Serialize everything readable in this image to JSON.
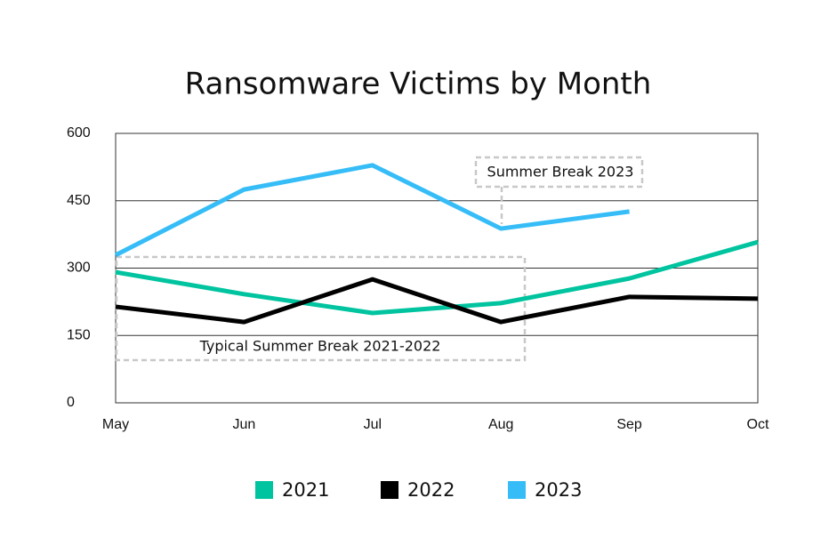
{
  "chart_data": {
    "type": "line",
    "title": "Ransomware Victims by Month",
    "categories": [
      "May",
      "Jun",
      "Jul",
      "Aug",
      "Sep",
      "Oct"
    ],
    "series": [
      {
        "name": "2021",
        "color": "#00c49f",
        "values": [
          291,
          242,
          200,
          222,
          277,
          358
        ]
      },
      {
        "name": "2022",
        "color": "#000000",
        "values": [
          214,
          180,
          275,
          180,
          236,
          232
        ]
      },
      {
        "name": "2023",
        "color": "#36bdf7",
        "values": [
          329,
          475,
          529,
          388,
          426,
          null
        ]
      }
    ],
    "ylim": [
      0,
      600
    ],
    "yticks": [
      0,
      150,
      300,
      450,
      600
    ],
    "grid": true,
    "annotations": [
      "Typical Summer Break 2021-2022",
      "Summer Break 2023"
    ]
  }
}
